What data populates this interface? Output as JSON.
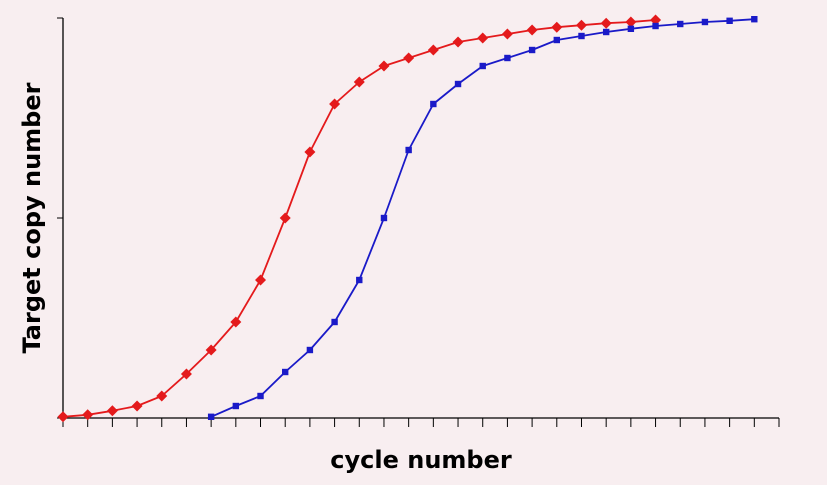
{
  "chart_data": {
    "type": "line",
    "title": "",
    "xlabel": "cycle number",
    "ylabel": "Target copy number",
    "xlim": [
      0,
      29
    ],
    "ylim": [
      0,
      100
    ],
    "x_minor_ticks": 1,
    "y_ticks": [
      0,
      50,
      100
    ],
    "grid": false,
    "legend": "none",
    "series": [
      {
        "color": "#e41a1c",
        "marker": "diamond",
        "x": [
          0,
          1,
          2,
          3,
          4,
          5,
          6,
          7,
          8,
          9,
          10,
          11,
          12,
          13,
          14,
          15,
          16,
          17,
          18,
          19,
          20,
          21,
          22,
          23,
          24
        ],
        "y": [
          0.3,
          0.8,
          1.8,
          3,
          5.5,
          11,
          17,
          24,
          34.5,
          50,
          66.5,
          78.5,
          84,
          88,
          90,
          92,
          94,
          95,
          96,
          97,
          97.7,
          98.2,
          98.7,
          99,
          99.5
        ]
      },
      {
        "color": "#1a1ac8",
        "marker": "square",
        "x": [
          6,
          7,
          8,
          9,
          10,
          11,
          12,
          13,
          14,
          15,
          16,
          17,
          18,
          19,
          20,
          21,
          22,
          23,
          24,
          25,
          26,
          27,
          28
        ],
        "y": [
          0.3,
          3,
          5.5,
          11.5,
          17,
          24,
          34.5,
          50,
          67,
          78.5,
          83.5,
          88,
          90,
          92,
          94.5,
          95.5,
          96.5,
          97.3,
          98,
          98.5,
          99,
          99.3,
          99.7
        ]
      }
    ]
  }
}
